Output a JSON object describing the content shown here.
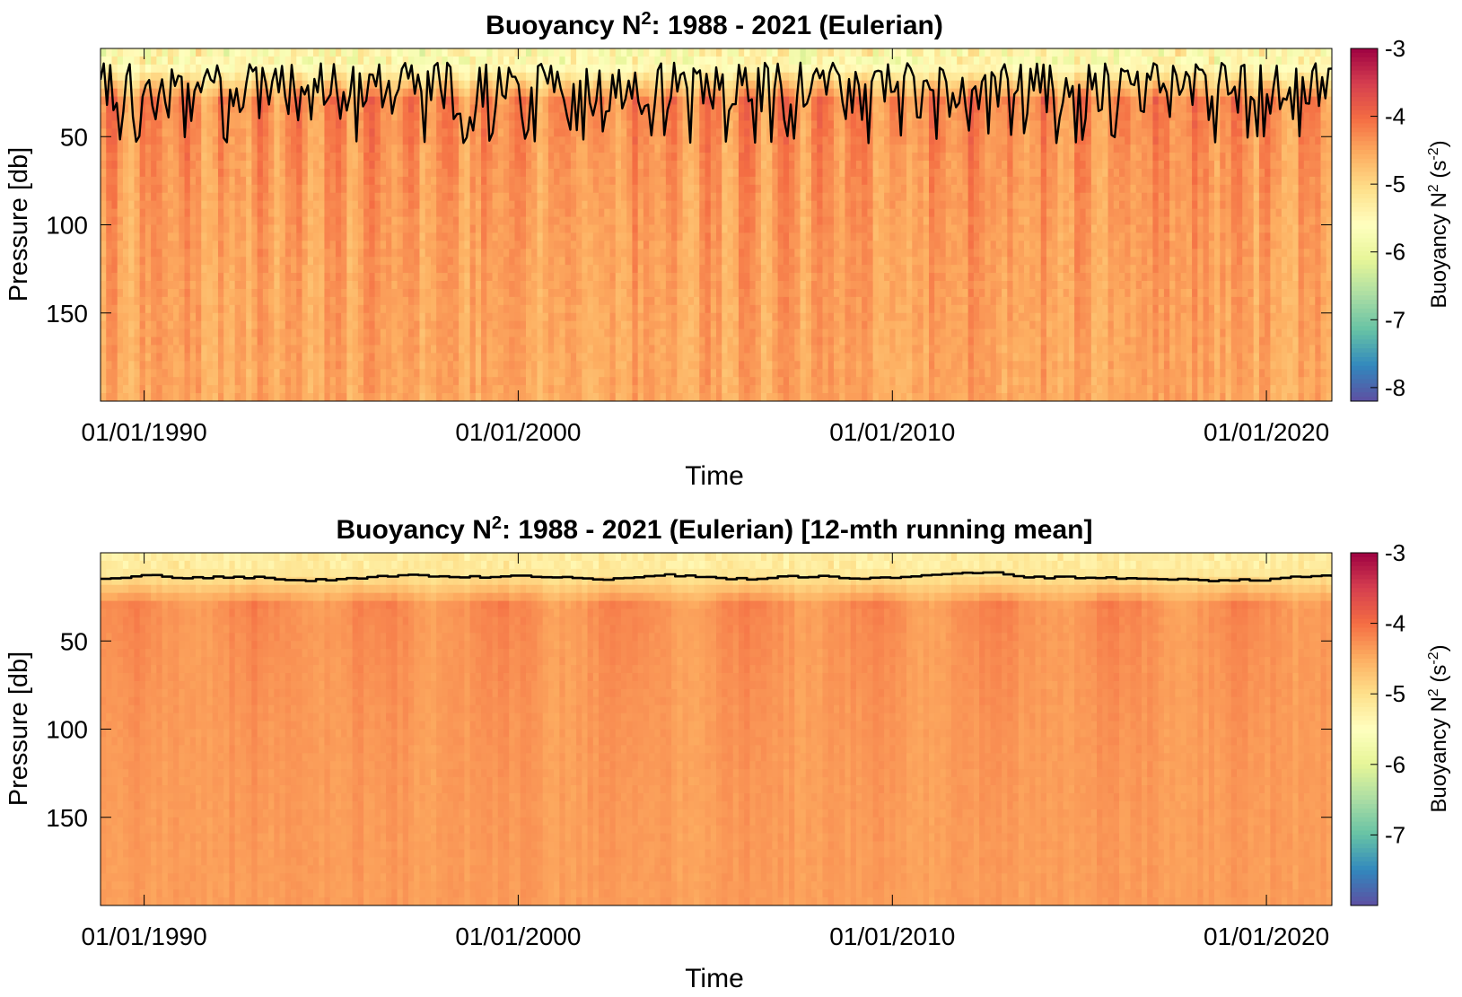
{
  "figure": {
    "colormap": [
      "#5e4fa2",
      "#3288bd",
      "#66c2a5",
      "#abdda4",
      "#e6f598",
      "#ffffbf",
      "#fee08b",
      "#fdae61",
      "#f46d43",
      "#d53e4f",
      "#9e0142"
    ],
    "contour_color": "#000000"
  },
  "chart_data": [
    {
      "type": "heatmap",
      "title_main": "Buoyancy N",
      "title_sup": "2",
      "title_rest": ": 1988 - 2021 (Eulerian)",
      "xlabel": "Time",
      "ylabel": "Pressure [db]",
      "x_range": [
        "1988-11-01",
        "2021-10-01"
      ],
      "x_ticks": [
        "01/01/1990",
        "01/01/2000",
        "01/01/2010",
        "01/01/2020"
      ],
      "ylim": [
        0,
        200
      ],
      "y_reversed": true,
      "y_ticks": [
        50,
        100,
        150
      ],
      "colorbar": {
        "label_main": "Buoyancy N",
        "label_sup": "2",
        "label_unit_open": " (s",
        "label_unit_sup": "-2",
        "label_unit_close": ")",
        "range": [
          -8.2,
          -3
        ],
        "ticks": [
          -3,
          -4,
          -5,
          -6,
          -7,
          -8
        ]
      },
      "field": {
        "surface_value": -5.6,
        "summer_value": -3.9,
        "winter_value": -4.6,
        "deep_value": -4.4
      },
      "mixed_layer_depth": {
        "name": "",
        "min_db": 8,
        "max_db": 54,
        "mean_db": 28
      }
    },
    {
      "type": "heatmap",
      "title_main": "Buoyancy N",
      "title_sup": "2",
      "title_rest": ": 1988 - 2021 (Eulerian) [12-mth running mean]",
      "xlabel": "Time",
      "ylabel": "Pressure [db]",
      "x_range": [
        "1988-11-01",
        "2021-10-01"
      ],
      "x_ticks": [
        "01/01/1990",
        "01/01/2000",
        "01/01/2010",
        "01/01/2020"
      ],
      "ylim": [
        0,
        200
      ],
      "y_reversed": true,
      "y_ticks": [
        50,
        100,
        150
      ],
      "colorbar": {
        "label_main": "Buoyancy N",
        "label_sup": "2",
        "label_unit_open": " (s",
        "label_unit_sup": "-2",
        "label_unit_close": ")",
        "range": [
          -8,
          -3
        ],
        "ticks": [
          -3,
          -4,
          -5,
          -6,
          -7
        ]
      },
      "field": {
        "surface_value": -5.2,
        "summer_value": -4.1,
        "winter_value": -4.4,
        "deep_value": -4.35
      },
      "mixed_layer_depth": {
        "name": "",
        "min_db": 8,
        "max_db": 20,
        "mean_db": 14
      }
    }
  ]
}
